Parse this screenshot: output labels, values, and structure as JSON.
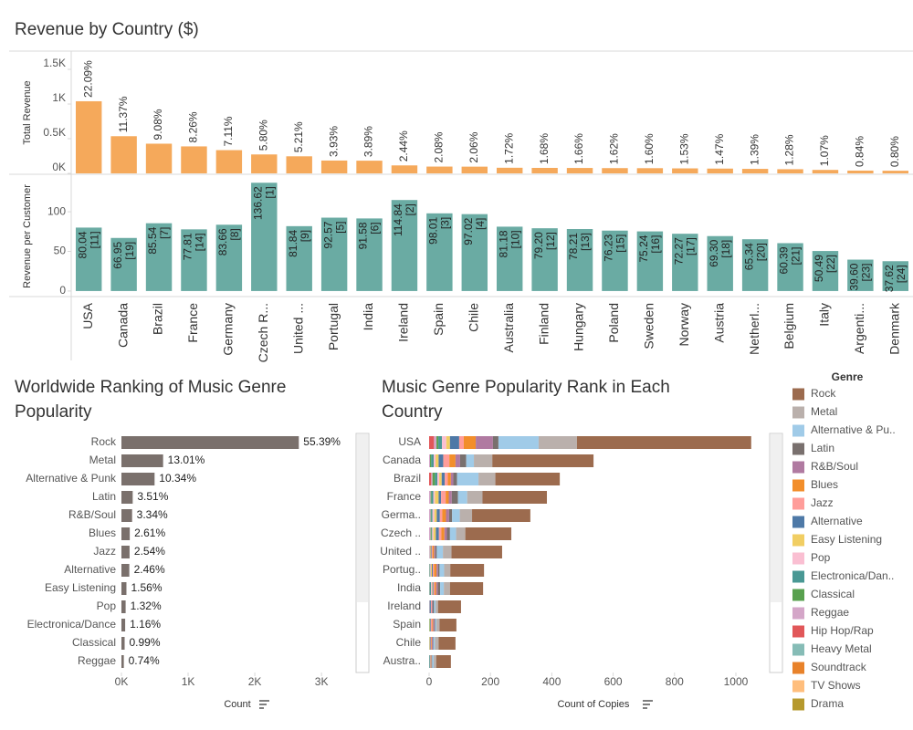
{
  "chart_data": [
    {
      "type": "bar",
      "title": "Revenue by Country ($)",
      "categories": [
        "USA",
        "Canada",
        "Brazil",
        "France",
        "Germany",
        "Czech R...",
        "United ...",
        "Portugal",
        "India",
        "Ireland",
        "Spain",
        "Chile",
        "Australia",
        "Finland",
        "Hungary",
        "Poland",
        "Sweden",
        "Norway",
        "Austria",
        "Netherl...",
        "Belgium",
        "Italy",
        "Argenti...",
        "Denmark"
      ],
      "series": [
        {
          "name": "Total Revenue",
          "color": "#f5a95b",
          "values": [
            1040,
            536,
            428,
            389,
            335,
            273,
            246,
            185,
            183,
            115,
            98,
            97,
            81,
            79,
            78,
            76,
            75,
            72,
            69,
            65,
            60,
            50,
            40,
            38
          ],
          "share_labels": [
            "22.09%",
            "11.37%",
            "9.08%",
            "8.26%",
            "7.11%",
            "5.80%",
            "5.21%",
            "3.93%",
            "3.89%",
            "2.44%",
            "2.08%",
            "2.06%",
            "1.72%",
            "1.68%",
            "1.66%",
            "1.62%",
            "1.60%",
            "1.53%",
            "1.47%",
            "1.39%",
            "1.28%",
            "1.07%",
            "0.84%",
            "0.80%"
          ]
        },
        {
          "name": "Revenue per Customer",
          "color": "#6aaba3",
          "axis": "y2",
          "values": [
            80.04,
            66.95,
            85.54,
            77.81,
            83.66,
            136.62,
            81.84,
            92.57,
            91.58,
            114.84,
            98.01,
            97.02,
            81.18,
            79.2,
            78.21,
            76.23,
            75.24,
            72.27,
            69.3,
            65.34,
            60.39,
            50.49,
            39.6,
            37.62
          ],
          "value_labels": [
            "80.04",
            "66.95",
            "85.54",
            "77.81",
            "83.66",
            "136.62",
            "81.84",
            "92.57",
            "91.58",
            "114.84",
            "98.01",
            "97.02",
            "81.18",
            "79.20",
            "78.21",
            "76.23",
            "75.24",
            "72.27",
            "69.30",
            "65.34",
            "60.39",
            "50.49",
            "39.60",
            "37.62"
          ],
          "rank_labels": [
            "[11]",
            "[19]",
            "[7]",
            "[14]",
            "[8]",
            "[1]",
            "[9]",
            "[5]",
            "[6]",
            "[2]",
            "[3]",
            "[4]",
            "[10]",
            "[12]",
            "[13]",
            "[15]",
            "[16]",
            "[17]",
            "[18]",
            "[20]",
            "[21]",
            "[22]",
            "[23]",
            "[24]"
          ]
        }
      ],
      "ylim": [
        0,
        1750
      ],
      "yticks": [
        {
          "value": 0,
          "label": "0K"
        },
        {
          "value": 500,
          "label": "0.5K"
        },
        {
          "value": 1000,
          "label": "1K"
        },
        {
          "value": 1500,
          "label": "1.5K"
        }
      ],
      "y2lim": [
        -7,
        145
      ],
      "y2ticks": [
        0,
        50,
        100
      ]
    },
    {
      "type": "hbar",
      "title": "Worldwide Ranking of Music Genre Popularity",
      "categories": [
        "Rock",
        "Metal",
        "Alternative & Punk",
        "Latin",
        "R&B/Soul",
        "Blues",
        "Jazz",
        "Alternative",
        "Easy Listening",
        "Pop",
        "Electronica/Dance",
        "Classical",
        "Reggae"
      ],
      "values": [
        2660,
        625,
        497,
        169,
        160,
        125,
        122,
        118,
        75,
        63,
        56,
        48,
        36
      ],
      "share_labels": [
        "55.39%",
        "13.01%",
        "10.34%",
        "3.51%",
        "3.34%",
        "2.61%",
        "2.54%",
        "2.46%",
        "1.56%",
        "1.32%",
        "1.16%",
        "0.99%",
        "0.74%"
      ],
      "color": "#7a706c",
      "xlim": [
        0,
        3450
      ],
      "xticks": [
        {
          "value": 0,
          "label": "0K"
        },
        {
          "value": 1000,
          "label": "1K"
        },
        {
          "value": 2000,
          "label": "2K"
        },
        {
          "value": 3000,
          "label": "3K"
        }
      ],
      "xlabel": "Count"
    },
    {
      "type": "stacked_hbar",
      "title": "Music Genre Popularity Rank in Each Country",
      "categories": [
        "USA",
        "Canada",
        "Brazil",
        "France",
        "Germa..",
        "Czech ..",
        "United ..",
        "Portug..",
        "India",
        "Ireland",
        "Spain",
        "Chile",
        "Austra.."
      ],
      "legend_title": "Genre",
      "series": [
        {
          "name": "Rock",
          "color": "#9c6b4e",
          "values": [
            568,
            330,
            210,
            210,
            190,
            150,
            165,
            110,
            108,
            75,
            55,
            55,
            48
          ]
        },
        {
          "name": "Metal",
          "color": "#bab0ac",
          "values": [
            125,
            60,
            55,
            50,
            40,
            30,
            28,
            20,
            20,
            8,
            10,
            12,
            8
          ]
        },
        {
          "name": "Alternative & Pu..",
          "color": "#a0cbe8",
          "values": [
            131,
            25,
            70,
            30,
            25,
            20,
            20,
            15,
            12,
            5,
            4,
            5,
            5
          ]
        },
        {
          "name": "Latin",
          "color": "#79706e",
          "values": [
            18,
            20,
            12,
            20,
            10,
            10,
            5,
            5,
            8,
            5,
            3,
            2,
            2
          ]
        },
        {
          "name": "R&B/Soul",
          "color": "#b07aa1",
          "values": [
            56,
            15,
            8,
            10,
            10,
            8,
            4,
            5,
            5,
            2,
            4,
            3,
            1
          ]
        },
        {
          "name": "Blues",
          "color": "#f28e2b",
          "values": [
            39,
            20,
            10,
            10,
            12,
            10,
            5,
            8,
            5,
            0,
            3,
            2,
            2
          ]
        },
        {
          "name": "Jazz",
          "color": "#ff9d9a",
          "values": [
            15,
            20,
            10,
            15,
            8,
            8,
            3,
            4,
            4,
            3,
            4,
            2,
            1
          ]
        },
        {
          "name": "Alternative",
          "color": "#4e79a7",
          "values": [
            30,
            15,
            10,
            8,
            10,
            10,
            3,
            3,
            3,
            2,
            2,
            2,
            2
          ]
        },
        {
          "name": "Easy Listening",
          "color": "#f1ce63",
          "values": [
            12,
            10,
            8,
            12,
            8,
            8,
            2,
            3,
            2,
            0,
            2,
            1,
            0
          ]
        },
        {
          "name": "Pop",
          "color": "#fabfd2",
          "values": [
            14,
            6,
            6,
            5,
            6,
            4,
            2,
            2,
            3,
            0,
            0,
            0,
            0
          ]
        },
        {
          "name": "Electronica/Dan..",
          "color": "#499894",
          "values": [
            12,
            8,
            8,
            6,
            4,
            2,
            1,
            2,
            4,
            2,
            1,
            0,
            1
          ]
        },
        {
          "name": "Classical",
          "color": "#59a14f",
          "values": [
            6,
            4,
            8,
            3,
            2,
            3,
            0,
            1,
            1,
            0,
            1,
            1,
            1
          ]
        },
        {
          "name": "Reggae",
          "color": "#d4a6c8",
          "values": [
            8,
            3,
            4,
            5,
            5,
            5,
            0,
            1,
            1,
            2,
            0,
            1,
            0
          ]
        },
        {
          "name": "Hip Hop/Rap",
          "color": "#e15759",
          "values": [
            16,
            0,
            7,
            0,
            0,
            0,
            0,
            0,
            0,
            0,
            0,
            0,
            0
          ]
        },
        {
          "name": "Heavy Metal",
          "color": "#86bcb6",
          "values": [
            0,
            0,
            0,
            0,
            0,
            0,
            0,
            0,
            0,
            0,
            0,
            0,
            0
          ]
        },
        {
          "name": "Soundtrack",
          "color": "#e8822a",
          "values": [
            0,
            0,
            0,
            0,
            0,
            0,
            0,
            0,
            0,
            0,
            0,
            0,
            0
          ]
        },
        {
          "name": "TV Shows",
          "color": "#ffbe7d",
          "values": [
            0,
            0,
            0,
            0,
            0,
            0,
            0,
            0,
            0,
            0,
            0,
            0,
            0
          ]
        },
        {
          "name": "Drama",
          "color": "#b6992d",
          "values": [
            0,
            0,
            0,
            0,
            0,
            0,
            0,
            0,
            0,
            0,
            0,
            0,
            0
          ]
        }
      ],
      "xlim": [
        0,
        1070
      ],
      "xticks": [
        0,
        200,
        400,
        600,
        800,
        1000
      ],
      "xlabel": "Count of Copies"
    }
  ]
}
